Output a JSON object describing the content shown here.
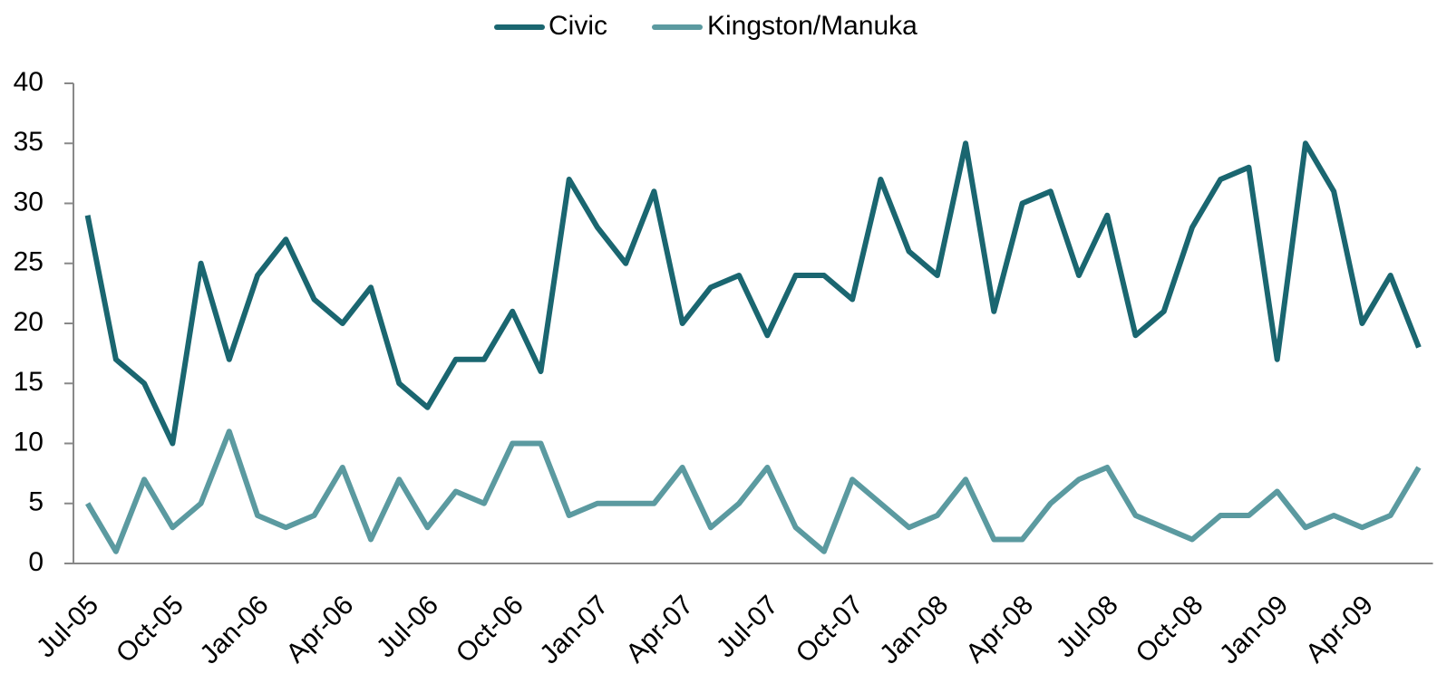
{
  "chart_data": {
    "type": "line",
    "categories": [
      "Jul-05",
      null,
      null,
      "Oct-05",
      null,
      null,
      "Jan-06",
      null,
      null,
      "Apr-06",
      null,
      null,
      "Jul-06",
      null,
      null,
      "Oct-06",
      null,
      null,
      "Jan-07",
      null,
      null,
      "Apr-07",
      null,
      null,
      "Jul-07",
      null,
      null,
      "Oct-07",
      null,
      null,
      "Jan-08",
      null,
      null,
      "Apr-08",
      null,
      null,
      "Jul-08",
      null,
      null,
      "Oct-08",
      null,
      null,
      "Jan-09",
      null,
      null,
      "Apr-09",
      null,
      null
    ],
    "series": [
      {
        "name": "Civic",
        "color": "#1a6670",
        "values": [
          29,
          17,
          15,
          10,
          25,
          17,
          24,
          27,
          22,
          20,
          23,
          15,
          13,
          17,
          17,
          21,
          16,
          32,
          28,
          25,
          31,
          20,
          23,
          24,
          19,
          24,
          24,
          22,
          32,
          26,
          24,
          35,
          21,
          30,
          31,
          24,
          29,
          19,
          21,
          28,
          32,
          33,
          17,
          35,
          31,
          20,
          24,
          18
        ]
      },
      {
        "name": "Kingston/Manuka",
        "color": "#5b9aa0",
        "values": [
          5,
          1,
          7,
          3,
          5,
          11,
          4,
          3,
          4,
          8,
          2,
          7,
          3,
          6,
          5,
          10,
          10,
          4,
          5,
          5,
          5,
          8,
          3,
          5,
          8,
          3,
          1,
          7,
          5,
          3,
          4,
          7,
          2,
          2,
          5,
          7,
          8,
          4,
          3,
          2,
          4,
          4,
          6,
          3,
          4,
          3,
          4,
          8
        ]
      }
    ],
    "ylim": [
      0,
      40
    ],
    "yticks": [
      0,
      5,
      10,
      15,
      20,
      25,
      30,
      35,
      40
    ],
    "legend": "top"
  }
}
